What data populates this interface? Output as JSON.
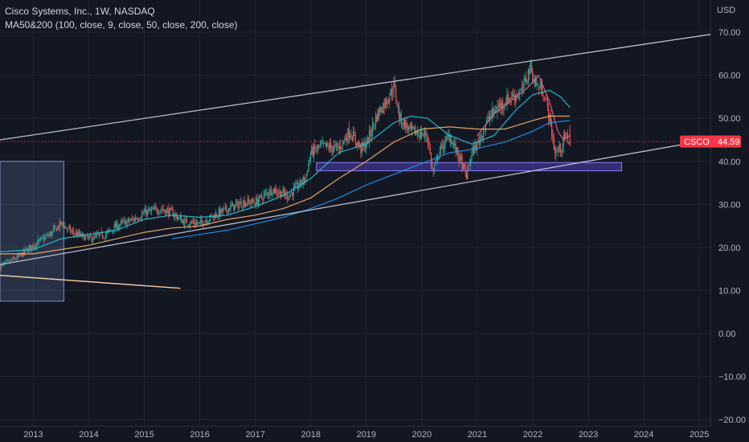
{
  "legend": {
    "title": "Cisco Systems, Inc., 1W, NASDAQ",
    "indicator": "MA50&200 (100, close, 9, close, 50, close, 200, close)"
  },
  "colors": {
    "background": "#131722",
    "grid": "#1f2431",
    "candle_up": "#26a69a",
    "candle_down": "#ef5350",
    "ma_short": "#f06292",
    "ma_mid": "#26c6da",
    "ma_long": "#f5b26b",
    "ma_slow": "#2196f3",
    "trendline": "#d1d4dc",
    "zone": "#5c4bd8",
    "price_tag": "#f23645"
  },
  "chart_data": {
    "type": "candlestick",
    "symbol": "CSCO",
    "interval": "1W",
    "currency": "USD",
    "last_price": 44.59,
    "y_axis": {
      "unit": "USD",
      "ticks": [
        "70.00",
        "60.00",
        "50.00",
        "40.00",
        "30.00",
        "20.00",
        "10.00",
        "0.00",
        "−10.00",
        "−20.00"
      ],
      "tick_values": [
        70,
        60,
        50,
        40,
        30,
        20,
        10,
        0,
        -10,
        -20
      ],
      "range": [
        -21.5,
        77.5
      ]
    },
    "x_axis": {
      "ticks": [
        "2013",
        "2014",
        "2015",
        "2016",
        "2017",
        "2018",
        "2019",
        "2020",
        "2021",
        "2022",
        "2023",
        "2024",
        "2025"
      ],
      "tick_values": [
        2013,
        2014,
        2015,
        2016,
        2017,
        2018,
        2019,
        2020,
        2021,
        2022,
        2023,
        2024,
        2025
      ],
      "range": [
        2012.4,
        2025.2
      ]
    },
    "close_path": [
      [
        2012.4,
        15.5
      ],
      [
        2012.7,
        17.5
      ],
      [
        2013.0,
        20.5
      ],
      [
        2013.3,
        23
      ],
      [
        2013.5,
        25.5
      ],
      [
        2013.7,
        23.5
      ],
      [
        2014.0,
        22
      ],
      [
        2014.3,
        23
      ],
      [
        2014.5,
        25
      ],
      [
        2014.8,
        26.5
      ],
      [
        2015.0,
        28
      ],
      [
        2015.3,
        29
      ],
      [
        2015.5,
        28
      ],
      [
        2015.7,
        26
      ],
      [
        2016.0,
        25.5
      ],
      [
        2016.2,
        27
      ],
      [
        2016.5,
        29
      ],
      [
        2016.8,
        30.5
      ],
      [
        2017.0,
        30.5
      ],
      [
        2017.3,
        33.5
      ],
      [
        2017.6,
        32
      ],
      [
        2017.9,
        36
      ],
      [
        2018.0,
        42
      ],
      [
        2018.2,
        43.5
      ],
      [
        2018.5,
        43
      ],
      [
        2018.7,
        47
      ],
      [
        2018.9,
        43
      ],
      [
        2019.0,
        44
      ],
      [
        2019.2,
        51
      ],
      [
        2019.4,
        55
      ],
      [
        2019.5,
        57.5
      ],
      [
        2019.6,
        50
      ],
      [
        2019.8,
        47
      ],
      [
        2019.95,
        46.5
      ],
      [
        2020.1,
        46
      ],
      [
        2020.2,
        37
      ],
      [
        2020.3,
        42
      ],
      [
        2020.5,
        46
      ],
      [
        2020.7,
        40
      ],
      [
        2020.8,
        36.5
      ],
      [
        2020.9,
        42
      ],
      [
        2021.0,
        44
      ],
      [
        2021.2,
        50
      ],
      [
        2021.4,
        53
      ],
      [
        2021.6,
        55
      ],
      [
        2021.8,
        56
      ],
      [
        2021.95,
        62
      ],
      [
        2022.05,
        58
      ],
      [
        2022.2,
        56
      ],
      [
        2022.3,
        50
      ],
      [
        2022.4,
        42
      ],
      [
        2022.5,
        43
      ],
      [
        2022.6,
        46
      ],
      [
        2022.67,
        44.59
      ]
    ],
    "moving_averages": [
      {
        "points": [
          [
            2021.0,
            46
          ],
          [
            2021.3,
            51
          ],
          [
            2021.6,
            54
          ],
          [
            2021.9,
            57
          ],
          [
            2022.1,
            60
          ],
          [
            2022.3,
            54
          ],
          [
            2022.45,
            47
          ],
          [
            2022.55,
            45
          ],
          [
            2022.67,
            46
          ]
        ]
      },
      {
        "points": [
          [
            2012.4,
            19
          ],
          [
            2013.0,
            19.5
          ],
          [
            2013.5,
            22
          ],
          [
            2014.0,
            23
          ],
          [
            2014.5,
            24
          ],
          [
            2015.0,
            26.5
          ],
          [
            2015.5,
            27.5
          ],
          [
            2016.0,
            27
          ],
          [
            2016.5,
            27.5
          ],
          [
            2017.0,
            29.5
          ],
          [
            2017.5,
            32
          ],
          [
            2018.0,
            36
          ],
          [
            2018.5,
            42
          ],
          [
            2019.0,
            44
          ],
          [
            2019.5,
            49
          ],
          [
            2019.8,
            50.5
          ],
          [
            2020.1,
            50
          ],
          [
            2020.5,
            46
          ],
          [
            2020.9,
            44
          ],
          [
            2021.3,
            46
          ],
          [
            2021.7,
            52
          ],
          [
            2022.0,
            55.5
          ],
          [
            2022.3,
            56.5
          ],
          [
            2022.5,
            55
          ],
          [
            2022.67,
            52.5
          ]
        ]
      },
      {
        "points": [
          [
            2012.4,
            18.5
          ],
          [
            2013.0,
            18.5
          ],
          [
            2013.5,
            19.5
          ],
          [
            2014.0,
            20.5
          ],
          [
            2014.5,
            22
          ],
          [
            2015.0,
            23.5
          ],
          [
            2015.5,
            24.5
          ],
          [
            2016.0,
            25
          ],
          [
            2016.5,
            26.5
          ],
          [
            2017.0,
            27.5
          ],
          [
            2017.5,
            29
          ],
          [
            2018.0,
            31.5
          ],
          [
            2018.5,
            36
          ],
          [
            2019.0,
            40
          ],
          [
            2019.5,
            44.5
          ],
          [
            2020.0,
            47.5
          ],
          [
            2020.5,
            48
          ],
          [
            2021.0,
            47.5
          ],
          [
            2021.5,
            47.5
          ],
          [
            2022.0,
            49.5
          ],
          [
            2022.3,
            50.5
          ],
          [
            2022.67,
            50.5
          ]
        ]
      },
      {
        "points": [
          [
            2015.5,
            22
          ],
          [
            2016.0,
            23
          ],
          [
            2016.5,
            24
          ],
          [
            2017.0,
            25.5
          ],
          [
            2017.5,
            27
          ],
          [
            2018.0,
            29
          ],
          [
            2018.5,
            31.5
          ],
          [
            2019.0,
            34.5
          ],
          [
            2019.5,
            37
          ],
          [
            2020.0,
            39.5
          ],
          [
            2020.5,
            42
          ],
          [
            2021.0,
            43
          ],
          [
            2021.5,
            44.5
          ],
          [
            2022.0,
            47
          ],
          [
            2022.3,
            49
          ],
          [
            2022.67,
            49.5
          ]
        ]
      }
    ],
    "trendlines": [
      {
        "from": [
          2012.4,
          45
        ],
        "to": [
          2025.2,
          69.5
        ]
      },
      {
        "from": [
          2012.4,
          16
        ],
        "to": [
          2025.0,
          44.59
        ]
      },
      {
        "from": [
          2012.4,
          13.5
        ],
        "to": [
          2015.65,
          10.5
        ]
      }
    ],
    "zones": [
      {
        "x": [
          2012.4,
          2013.55
        ],
        "y": [
          7.5,
          40
        ]
      },
      {
        "x": [
          2018.1,
          2023.6
        ],
        "y": [
          37.8,
          39.7
        ]
      }
    ]
  }
}
